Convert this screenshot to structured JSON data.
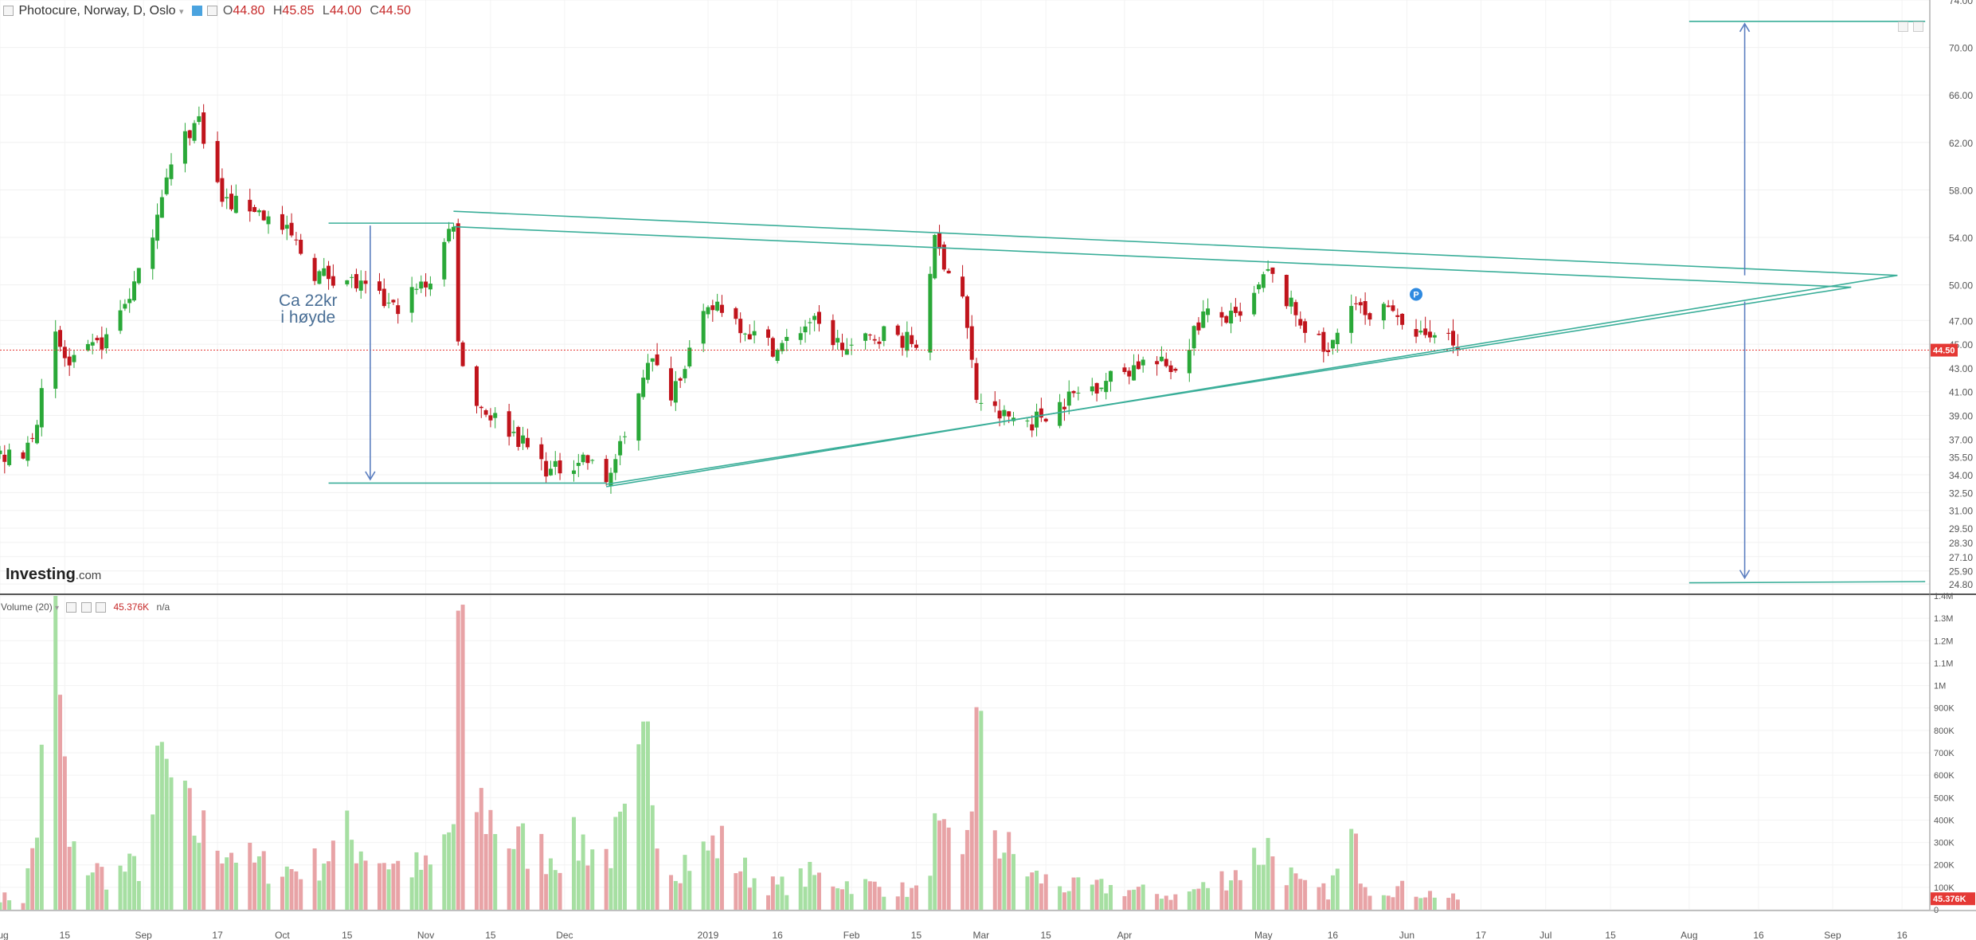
{
  "header": {
    "collapse_icon": "minus-box-icon",
    "instrument": "Photocure, Norway, D, Oslo",
    "open_label": "O",
    "open": "44.80",
    "high_label": "H",
    "high": "45.85",
    "low_label": "L",
    "low": "44.00",
    "close_label": "C",
    "close": "44.50"
  },
  "volume_header": {
    "label": "Volume (20)",
    "value": "45.376K",
    "ma": "n/a"
  },
  "logo": {
    "brand": "Investing",
    "suffix": ".com"
  },
  "annotation": {
    "line1": "Ca 22kr",
    "line2": "i høyde"
  },
  "colors": {
    "up": "#2aa838",
    "down": "#c0141c",
    "up_vol": "#a6dfa2",
    "down_vol": "#e8a3a6",
    "trend": "#3aae99",
    "arrow": "#5b7ec0",
    "price_line": "#e53935"
  },
  "chart_data": {
    "type": "candlestick",
    "price_axis": {
      "min": 24.0,
      "max": 74.0,
      "ticks": [
        24.8,
        25.9,
        27.1,
        28.3,
        29.5,
        31.0,
        32.5,
        34.0,
        35.5,
        37.0,
        39.0,
        41.0,
        43.0,
        45.0,
        47.0,
        50.0,
        54.0,
        58.0,
        62.0,
        66.0,
        70.0,
        74.0
      ],
      "last_price": 44.5
    },
    "volume_axis": {
      "min": 0,
      "max": 1400000,
      "ticks": [
        "0",
        "100K",
        "200K",
        "300K",
        "400K",
        "500K",
        "600K",
        "700K",
        "800K",
        "900K",
        "1M",
        "1.1M",
        "1.2M",
        "1.3M",
        "1.4M"
      ],
      "last_volume": "45.376K"
    },
    "x_axis": {
      "start": "2018-08-01",
      "end": "2019-09-22",
      "labels": [
        {
          "date": "2018-08-01",
          "text": "Aug"
        },
        {
          "date": "2018-08-15",
          "text": "15"
        },
        {
          "date": "2018-09-01",
          "text": "Sep"
        },
        {
          "date": "2018-09-17",
          "text": "17"
        },
        {
          "date": "2018-10-01",
          "text": "Oct"
        },
        {
          "date": "2018-10-15",
          "text": "15"
        },
        {
          "date": "2018-11-01",
          "text": "Nov"
        },
        {
          "date": "2018-11-15",
          "text": "15"
        },
        {
          "date": "2018-12-01",
          "text": "Dec"
        },
        {
          "date": "2019-01-01",
          "text": "2019"
        },
        {
          "date": "2019-01-16",
          "text": "16"
        },
        {
          "date": "2019-02-01",
          "text": "Feb"
        },
        {
          "date": "2019-02-15",
          "text": "15"
        },
        {
          "date": "2019-03-01",
          "text": "Mar"
        },
        {
          "date": "2019-03-15",
          "text": "15"
        },
        {
          "date": "2019-04-01",
          "text": "Apr"
        },
        {
          "date": "2019-05-01",
          "text": "May"
        },
        {
          "date": "2019-05-16",
          "text": "16"
        },
        {
          "date": "2019-06-01",
          "text": "Jun"
        },
        {
          "date": "2019-06-17",
          "text": "17"
        },
        {
          "date": "2019-07-01",
          "text": "Jul"
        },
        {
          "date": "2019-07-15",
          "text": "15"
        },
        {
          "date": "2019-08-01",
          "text": "Aug"
        },
        {
          "date": "2019-08-16",
          "text": "16"
        },
        {
          "date": "2019-09-01",
          "text": "Sep"
        },
        {
          "date": "2019-09-16",
          "text": "16"
        }
      ]
    },
    "anchors": [
      {
        "date": "2018-08-01",
        "close": 35.6,
        "vol": 60000
      },
      {
        "date": "2018-08-06",
        "close": 35.2,
        "vol": 40000
      },
      {
        "date": "2018-08-09",
        "close": 39.0,
        "vol": 380000
      },
      {
        "date": "2018-08-13",
        "close": 45.5,
        "vol": 1260000
      },
      {
        "date": "2018-08-16",
        "close": 43.0,
        "vol": 250000
      },
      {
        "date": "2018-08-24",
        "close": 45.5,
        "vol": 150000
      },
      {
        "date": "2018-09-01",
        "close": 51.5,
        "vol": 200000
      },
      {
        "date": "2018-09-05",
        "close": 58.0,
        "vol": 640000
      },
      {
        "date": "2018-09-10",
        "close": 62.5,
        "vol": 420000
      },
      {
        "date": "2018-09-13",
        "close": 64.0,
        "vol": 350000
      },
      {
        "date": "2018-09-18",
        "close": 57.0,
        "vol": 300000
      },
      {
        "date": "2018-09-25",
        "close": 56.5,
        "vol": 200000
      },
      {
        "date": "2018-10-03",
        "close": 54.0,
        "vol": 180000
      },
      {
        "date": "2018-10-08",
        "close": 51.0,
        "vol": 200000
      },
      {
        "date": "2018-10-15",
        "close": 50.5,
        "vol": 320000
      },
      {
        "date": "2018-10-25",
        "close": 48.0,
        "vol": 200000
      },
      {
        "date": "2018-11-02",
        "close": 50.5,
        "vol": 180000
      },
      {
        "date": "2018-11-07",
        "close": 55.5,
        "vol": 380000
      },
      {
        "date": "2018-11-08",
        "close": 45.0,
        "vol": 1140000
      },
      {
        "date": "2018-11-12",
        "close": 40.0,
        "vol": 480000
      },
      {
        "date": "2018-11-20",
        "close": 37.5,
        "vol": 300000
      },
      {
        "date": "2018-11-28",
        "close": 34.2,
        "vol": 250000
      },
      {
        "date": "2018-12-05",
        "close": 35.5,
        "vol": 300000
      },
      {
        "date": "2018-12-10",
        "close": 33.5,
        "vol": 250000
      },
      {
        "date": "2018-12-14",
        "close": 37.0,
        "vol": 350000
      },
      {
        "date": "2018-12-19",
        "close": 44.0,
        "vol": 680000
      },
      {
        "date": "2018-12-24",
        "close": 41.0,
        "vol": 200000
      },
      {
        "date": "2018-12-31",
        "close": 47.0,
        "vol": 250000
      },
      {
        "date": "2019-01-03",
        "close": 48.5,
        "vol": 300000
      },
      {
        "date": "2019-01-10",
        "close": 46.0,
        "vol": 150000
      },
      {
        "date": "2019-01-16",
        "close": 44.5,
        "vol": 100000
      },
      {
        "date": "2019-01-23",
        "close": 47.0,
        "vol": 150000
      },
      {
        "date": "2019-01-31",
        "close": 44.5,
        "vol": 120000
      },
      {
        "date": "2019-02-08",
        "close": 46.0,
        "vol": 100000
      },
      {
        "date": "2019-02-15",
        "close": 45.0,
        "vol": 80000
      },
      {
        "date": "2019-02-19",
        "close": 53.5,
        "vol": 320000
      },
      {
        "date": "2019-02-25",
        "close": 49.0,
        "vol": 200000
      },
      {
        "date": "2019-02-28",
        "close": 40.5,
        "vol": 750000
      },
      {
        "date": "2019-03-05",
        "close": 39.0,
        "vol": 300000
      },
      {
        "date": "2019-03-12",
        "close": 38.5,
        "vol": 150000
      },
      {
        "date": "2019-03-20",
        "close": 40.5,
        "vol": 100000
      },
      {
        "date": "2019-03-28",
        "close": 42.0,
        "vol": 100000
      },
      {
        "date": "2019-04-05",
        "close": 43.5,
        "vol": 80000
      },
      {
        "date": "2019-04-12",
        "close": 43.0,
        "vol": 60000
      },
      {
        "date": "2019-04-18",
        "close": 47.5,
        "vol": 100000
      },
      {
        "date": "2019-04-26",
        "close": 47.0,
        "vol": 180000
      },
      {
        "date": "2019-05-02",
        "close": 51.0,
        "vol": 280000
      },
      {
        "date": "2019-05-09",
        "close": 47.0,
        "vol": 100000
      },
      {
        "date": "2019-05-15",
        "close": 44.0,
        "vol": 80000
      },
      {
        "date": "2019-05-20",
        "close": 49.0,
        "vol": 300000
      },
      {
        "date": "2019-05-24",
        "close": 46.5,
        "vol": 100000
      },
      {
        "date": "2019-05-29",
        "close": 48.5,
        "vol": 100000
      },
      {
        "date": "2019-06-03",
        "close": 45.0,
        "vol": 80000
      },
      {
        "date": "2019-06-07",
        "close": 46.5,
        "vol": 70000
      },
      {
        "date": "2019-06-12",
        "close": 44.5,
        "vol": 45376
      }
    ],
    "markers": [
      {
        "date": "2019-06-03",
        "price": 49.2,
        "label": "P"
      }
    ]
  }
}
